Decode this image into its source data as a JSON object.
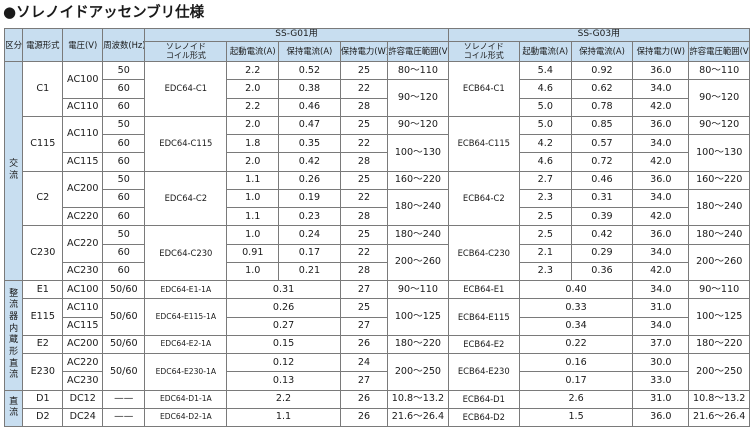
{
  "title": "ソレノイドアッセンブリ仕様",
  "header": {
    "kubun": "区分",
    "solenoid_type": "ソレノイド",
    "coil_type": "コイル形式",
    "model": "電源形式",
    "voltage": "電圧(V)",
    "frequency": "周波数(Hz)",
    "g01": "SS-G01用",
    "g03": "SS-G03用",
    "inrush": "起動電流(A)",
    "hold_current": "保持電流(A)",
    "hold_power": "保持電力(W)",
    "range": "許容電圧範囲(V)"
  },
  "categories": {
    "ac": [
      "交",
      "流"
    ],
    "rect": [
      "整",
      "流",
      "器",
      "内",
      "蔵",
      "形",
      "直",
      "流"
    ],
    "dc": [
      "直",
      "流"
    ]
  },
  "ac_groups": [
    {
      "model": "C1",
      "coil01": "EDC64-C1",
      "coil03": "ECB64-C1",
      "rows": [
        {
          "v": "AC100",
          "hz": "50",
          "a1": "2.2",
          "h1": "0.52",
          "w1": "25",
          "r1": "80～110",
          "a3": "5.4",
          "h3": "0.92",
          "w3": "36.0",
          "r3": "80～110"
        },
        {
          "v": "",
          "hz": "60",
          "a1": "2.0",
          "h1": "0.38",
          "w1": "22",
          "r1": "90～120",
          "a3": "4.6",
          "h3": "0.62",
          "w3": "34.0",
          "r3": "90～120"
        },
        {
          "v": "AC110",
          "hz": "60",
          "a1": "2.2",
          "h1": "0.46",
          "w1": "28",
          "r1": "",
          "a3": "5.0",
          "h3": "0.78",
          "w3": "42.0",
          "r3": ""
        }
      ]
    },
    {
      "model": "C115",
      "coil01": "EDC64-C115",
      "coil03": "ECB64-C115",
      "rows": [
        {
          "v": "AC110",
          "hz": "50",
          "a1": "2.0",
          "h1": "0.47",
          "w1": "25",
          "r1": "90～120",
          "a3": "5.0",
          "h3": "0.85",
          "w3": "36.0",
          "r3": "90～120"
        },
        {
          "v": "",
          "hz": "60",
          "a1": "1.8",
          "h1": "0.35",
          "w1": "22",
          "r1": "100～130",
          "a3": "4.2",
          "h3": "0.57",
          "w3": "34.0",
          "r3": "100～130"
        },
        {
          "v": "AC115",
          "hz": "60",
          "a1": "2.0",
          "h1": "0.42",
          "w1": "28",
          "r1": "",
          "a3": "4.6",
          "h3": "0.72",
          "w3": "42.0",
          "r3": ""
        }
      ]
    },
    {
      "model": "C2",
      "coil01": "EDC64-C2",
      "coil03": "ECB64-C2",
      "rows": [
        {
          "v": "AC200",
          "hz": "50",
          "a1": "1.1",
          "h1": "0.26",
          "w1": "25",
          "r1": "160～220",
          "a3": "2.7",
          "h3": "0.46",
          "w3": "36.0",
          "r3": "160～220"
        },
        {
          "v": "",
          "hz": "60",
          "a1": "1.0",
          "h1": "0.19",
          "w1": "22",
          "r1": "180～240",
          "a3": "2.3",
          "h3": "0.31",
          "w3": "34.0",
          "r3": "180～240"
        },
        {
          "v": "AC220",
          "hz": "60",
          "a1": "1.1",
          "h1": "0.23",
          "w1": "28",
          "r1": "",
          "a3": "2.5",
          "h3": "0.39",
          "w3": "42.0",
          "r3": ""
        }
      ]
    },
    {
      "model": "C230",
      "coil01": "EDC64-C230",
      "coil03": "ECB64-C230",
      "rows": [
        {
          "v": "AC220",
          "hz": "50",
          "a1": "1.0",
          "h1": "0.24",
          "w1": "25",
          "r1": "180～240",
          "a3": "2.5",
          "h3": "0.42",
          "w3": "36.0",
          "r3": "180～240"
        },
        {
          "v": "",
          "hz": "60",
          "a1": "0.91",
          "h1": "0.17",
          "w1": "22",
          "r1": "200～260",
          "a3": "2.1",
          "h3": "0.29",
          "w3": "34.0",
          "r3": "200～260"
        },
        {
          "v": "AC230",
          "hz": "60",
          "a1": "1.0",
          "h1": "0.21",
          "w1": "28",
          "r1": "",
          "a3": "2.3",
          "h3": "0.36",
          "w3": "42.0",
          "r3": ""
        }
      ]
    }
  ],
  "rect_groups": [
    {
      "model": "E1",
      "volts": [
        "AC100"
      ],
      "hz": "50/60",
      "coil01": "EDC64-E1-1A",
      "c1": [
        "0.31"
      ],
      "w1": [
        "27"
      ],
      "r1": "90～110",
      "coil03": "ECB64-E1",
      "c3": [
        "0.40"
      ],
      "w3": [
        "34.0"
      ],
      "r3": "90～110"
    },
    {
      "model": "E115",
      "volts": [
        "AC110",
        "AC115"
      ],
      "hz": "50/60",
      "coil01": "EDC64-E115-1A",
      "c1": [
        "0.26",
        "0.27"
      ],
      "w1": [
        "25",
        "27"
      ],
      "r1": "100～125",
      "coil03": "ECB64-E115",
      "c3": [
        "0.33",
        "0.34"
      ],
      "w3": [
        "31.0",
        "34.0"
      ],
      "r3": "100～125"
    },
    {
      "model": "E2",
      "volts": [
        "AC200"
      ],
      "hz": "50/60",
      "coil01": "EDC64-E2-1A",
      "c1": [
        "0.15"
      ],
      "w1": [
        "26"
      ],
      "r1": "180～220",
      "coil03": "ECB64-E2",
      "c3": [
        "0.22"
      ],
      "w3": [
        "37.0"
      ],
      "r3": "180～220"
    },
    {
      "model": "E230",
      "volts": [
        "AC220",
        "AC230"
      ],
      "hz": "50/60",
      "coil01": "EDC64-E230-1A",
      "c1": [
        "0.12",
        "0.13"
      ],
      "w1": [
        "24",
        "27"
      ],
      "r1": "200～250",
      "coil03": "ECB64-E230",
      "c3": [
        "0.16",
        "0.17"
      ],
      "w3": [
        "30.0",
        "33.0"
      ],
      "r3": "200～250"
    }
  ],
  "dc_rows": [
    {
      "model": "D1",
      "v": "DC12",
      "hz": "——",
      "coil01": "EDC64-D1-1A",
      "c1": "2.2",
      "w1": "26",
      "r1": "10.8～13.2",
      "coil03": "ECB64-D1",
      "c3": "2.6",
      "w3": "31.0",
      "r3": "10.8～13.2"
    },
    {
      "model": "D2",
      "v": "DC24",
      "hz": "——",
      "coil01": "EDC64-D2-1A",
      "c1": "1.1",
      "w1": "26",
      "r1": "21.6～26.4",
      "coil03": "ECB64-D2",
      "c3": "1.5",
      "w3": "36.0",
      "r3": "21.6～26.4"
    }
  ]
}
